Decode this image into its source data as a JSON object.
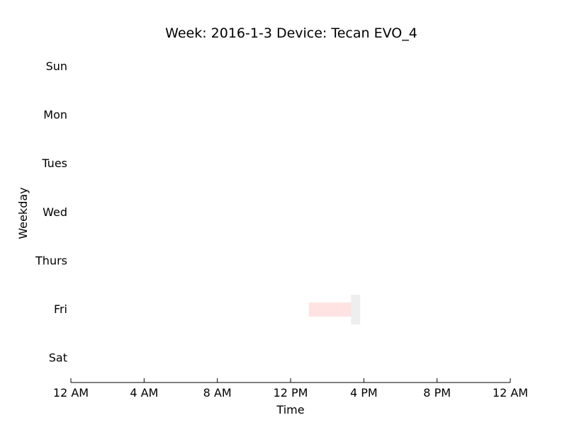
{
  "chart_data": {
    "type": "timeline",
    "title": "Week: 2016-1-3  Device: Tecan EVO_4",
    "xlabel": "Time",
    "ylabel": "Weekday",
    "x_ticks": [
      "12 AM",
      "4 AM",
      "8 AM",
      "12 PM",
      "4 PM",
      "8 PM",
      "12 AM"
    ],
    "x_range_hours": [
      0,
      24
    ],
    "days": [
      "Sun",
      "Mon",
      "Tues",
      "Wed",
      "Thurs",
      "Fri",
      "Sat"
    ],
    "grid": false,
    "events": [
      {
        "day": "Fri",
        "start_hour": 13.0,
        "end_hour": 15.5,
        "color": "#ffe3e3",
        "kind": "thin"
      },
      {
        "day": "Fri",
        "start_hour": 15.3,
        "end_hour": 15.8,
        "color": "#eeeeee",
        "kind": "thick"
      }
    ]
  }
}
